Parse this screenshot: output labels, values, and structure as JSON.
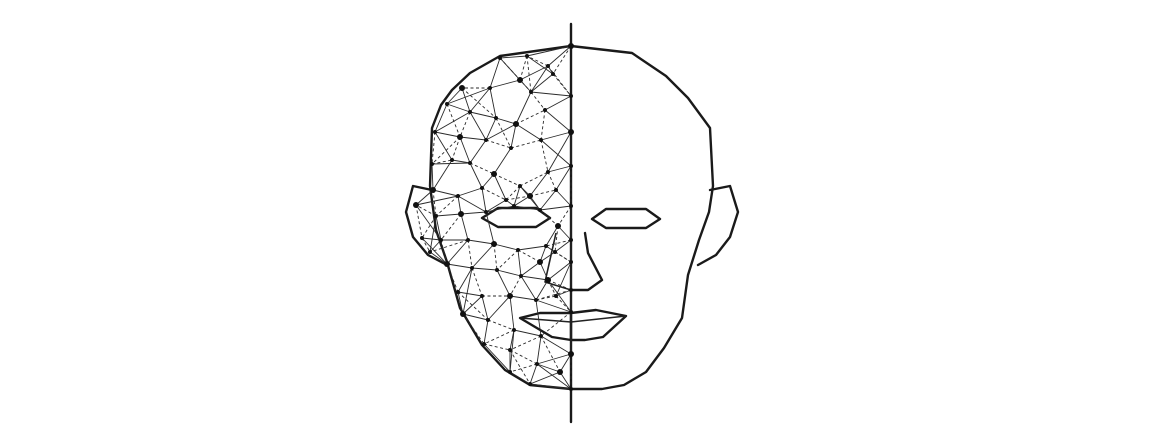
{
  "figure": {
    "colors": {
      "line": "#1a1a1a",
      "mesh": "#2a2a2a",
      "background": "#ffffff"
    },
    "parts": [
      "left-half-wireframe-mesh",
      "right-half-line-drawing",
      "center-axis"
    ]
  }
}
